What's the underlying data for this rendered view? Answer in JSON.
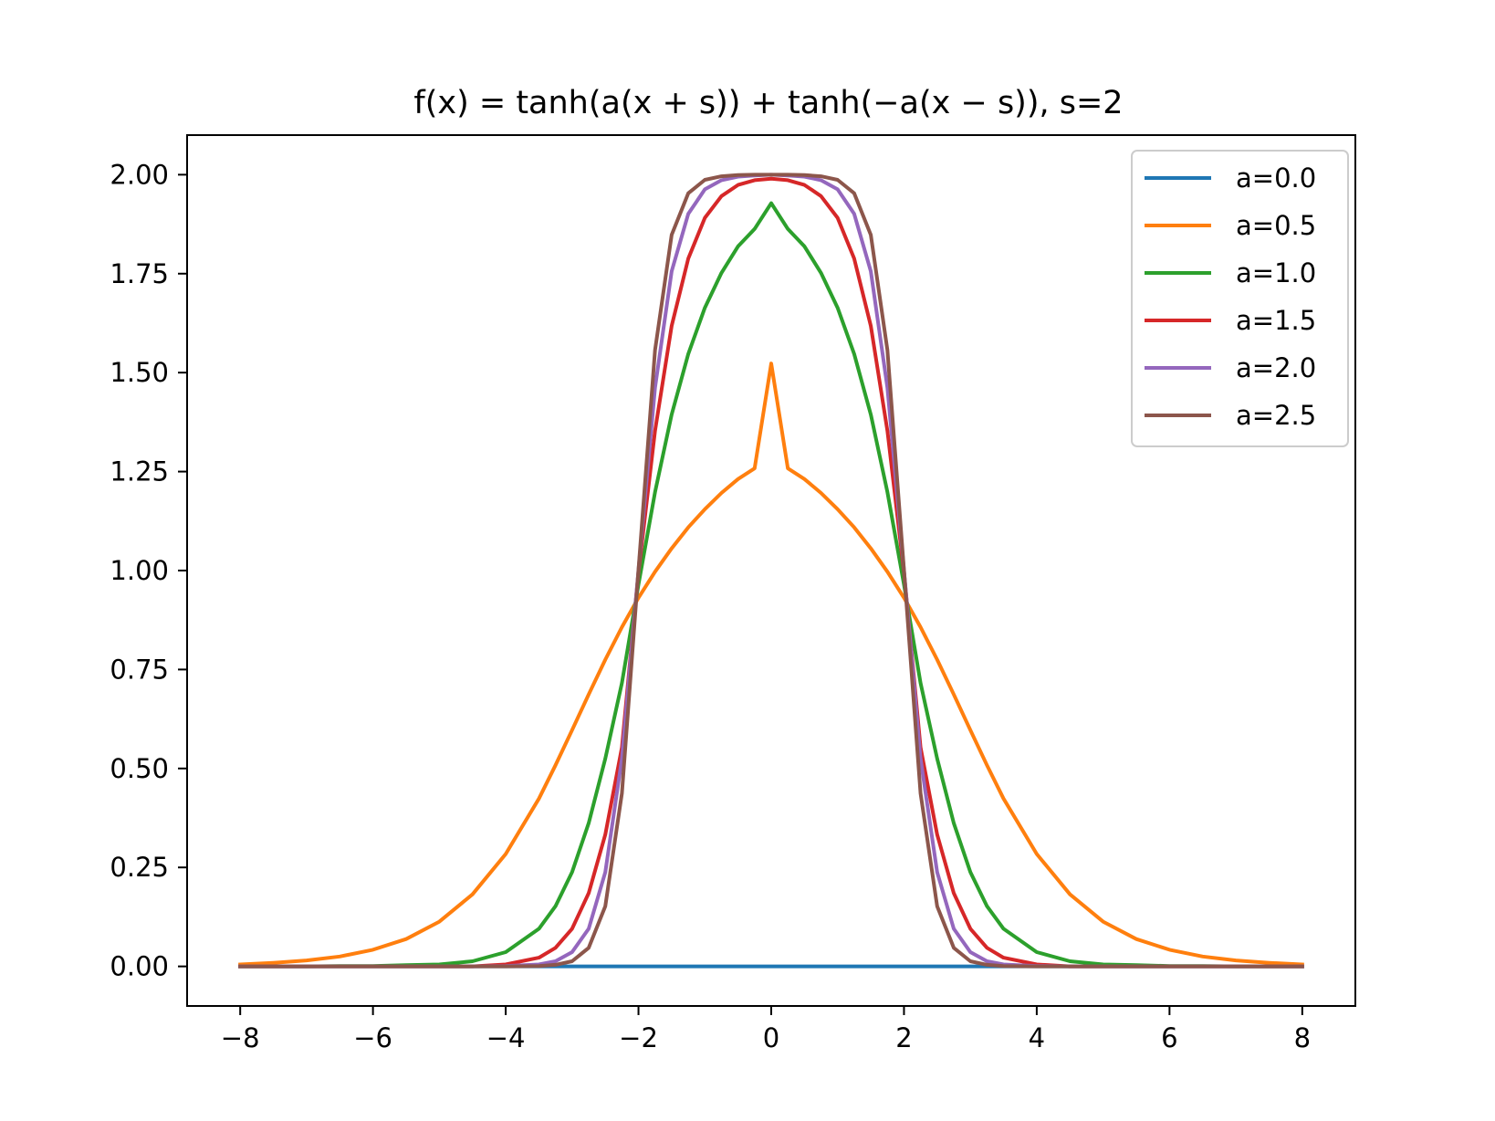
{
  "chart_data": {
    "type": "line",
    "title": "f(x) = tanh(a(x + s)) + tanh(−a(x − s)), s=2",
    "xlabel": "",
    "ylabel": "",
    "xlim": [
      -8.8,
      8.8
    ],
    "ylim": [
      -0.1,
      2.1
    ],
    "xticks": [
      -8,
      -6,
      -4,
      -2,
      0,
      2,
      4,
      6,
      8
    ],
    "xtick_labels": [
      "−8",
      "−6",
      "−4",
      "−2",
      "0",
      "2",
      "4",
      "6",
      "8"
    ],
    "yticks": [
      0,
      0.25,
      0.5,
      0.75,
      1.0,
      1.25,
      1.5,
      1.75,
      2.0
    ],
    "ytick_labels": [
      "0.00",
      "0.25",
      "0.50",
      "0.75",
      "1.00",
      "1.25",
      "1.50",
      "1.75",
      "2.00"
    ],
    "grid": false,
    "legend_position": "top-right",
    "x": [
      -8,
      -7.5,
      -7,
      -6.5,
      -6,
      -5.5,
      -5,
      -4.5,
      -4,
      -3.5,
      -3.25,
      -3,
      -2.75,
      -2.5,
      -2.25,
      -2,
      -1.75,
      -1.5,
      -1.25,
      -1,
      -0.75,
      -0.5,
      -0.25,
      0,
      0.25,
      0.5,
      0.75,
      1,
      1.25,
      1.5,
      1.75,
      2,
      2.25,
      2.5,
      2.75,
      3,
      3.25,
      3.5,
      4,
      4.5,
      5,
      5.5,
      6,
      6.5,
      7,
      7.5,
      8
    ],
    "series": [
      {
        "name": "a=0.0",
        "color": "#1f77b4",
        "values": [
          0,
          0,
          0,
          0,
          0,
          0,
          0,
          0,
          0,
          0,
          0,
          0,
          0,
          0,
          0,
          0,
          0,
          0,
          0,
          0,
          0,
          0,
          0,
          0,
          0,
          0,
          0,
          0,
          0,
          0,
          0,
          0,
          0,
          0,
          0,
          0,
          0,
          0,
          0,
          0,
          0,
          0,
          0,
          0,
          0,
          0,
          0
        ]
      },
      {
        "name": "a=0.5",
        "color": "#ff7f0e",
        "values": [
          0.005,
          0.009,
          0.015,
          0.025,
          0.042,
          0.069,
          0.113,
          0.182,
          0.284,
          0.424,
          0.508,
          0.597,
          0.687,
          0.775,
          0.857,
          0.931,
          0.997,
          1.056,
          1.109,
          1.155,
          1.196,
          1.231,
          1.258,
          1.523,
          1.258,
          1.231,
          1.196,
          1.155,
          1.109,
          1.056,
          0.997,
          0.931,
          0.857,
          0.775,
          0.687,
          0.597,
          0.508,
          0.424,
          0.284,
          0.182,
          0.113,
          0.069,
          0.042,
          0.025,
          0.015,
          0.009,
          0.005
        ]
      },
      {
        "name": "a=1.0",
        "color": "#2ca02c",
        "values": [
          0,
          0,
          0,
          0.001,
          0.001,
          0.003,
          0.005,
          0.013,
          0.036,
          0.095,
          0.152,
          0.238,
          0.362,
          0.525,
          0.716,
          0.964,
          1.198,
          1.394,
          1.547,
          1.664,
          1.752,
          1.819,
          1.863,
          1.928,
          1.863,
          1.819,
          1.752,
          1.664,
          1.547,
          1.394,
          1.198,
          0.964,
          0.716,
          0.525,
          0.362,
          0.238,
          0.152,
          0.095,
          0.036,
          0.013,
          0.005,
          0.003,
          0.001,
          0.001,
          0,
          0,
          0
        ]
      },
      {
        "name": "a=1.5",
        "color": "#d62728",
        "values": [
          0,
          0,
          0,
          0,
          0,
          0,
          0,
          0,
          0.005,
          0.022,
          0.047,
          0.095,
          0.185,
          0.333,
          0.553,
          0.995,
          1.353,
          1.618,
          1.788,
          1.891,
          1.946,
          1.974,
          1.986,
          1.99,
          1.986,
          1.974,
          1.946,
          1.891,
          1.788,
          1.618,
          1.353,
          0.995,
          0.553,
          0.333,
          0.185,
          0.095,
          0.047,
          0.022,
          0.005,
          0,
          0,
          0,
          0,
          0,
          0,
          0,
          0
        ]
      },
      {
        "name": "a=2.0",
        "color": "#9467bd",
        "values": [
          0,
          0,
          0,
          0,
          0,
          0,
          0,
          0,
          0.001,
          0.005,
          0.013,
          0.036,
          0.095,
          0.238,
          0.525,
          1.0,
          1.462,
          1.756,
          1.901,
          1.963,
          1.986,
          1.995,
          1.998,
          2.0,
          1.998,
          1.995,
          1.986,
          1.963,
          1.901,
          1.756,
          1.462,
          1.0,
          0.525,
          0.238,
          0.095,
          0.036,
          0.013,
          0.005,
          0.001,
          0,
          0,
          0,
          0,
          0,
          0,
          0,
          0
        ]
      },
      {
        "name": "a=2.5",
        "color": "#8c564b",
        "values": [
          0,
          0,
          0,
          0,
          0,
          0,
          0,
          0,
          0,
          0.001,
          0.004,
          0.013,
          0.047,
          0.152,
          0.437,
          1.0,
          1.557,
          1.848,
          1.953,
          1.987,
          1.996,
          1.999,
          2.0,
          2.0,
          2.0,
          1.999,
          1.996,
          1.987,
          1.953,
          1.848,
          1.557,
          1.0,
          0.437,
          0.152,
          0.047,
          0.013,
          0.004,
          0.001,
          0,
          0,
          0,
          0,
          0,
          0,
          0,
          0,
          0
        ]
      }
    ]
  }
}
